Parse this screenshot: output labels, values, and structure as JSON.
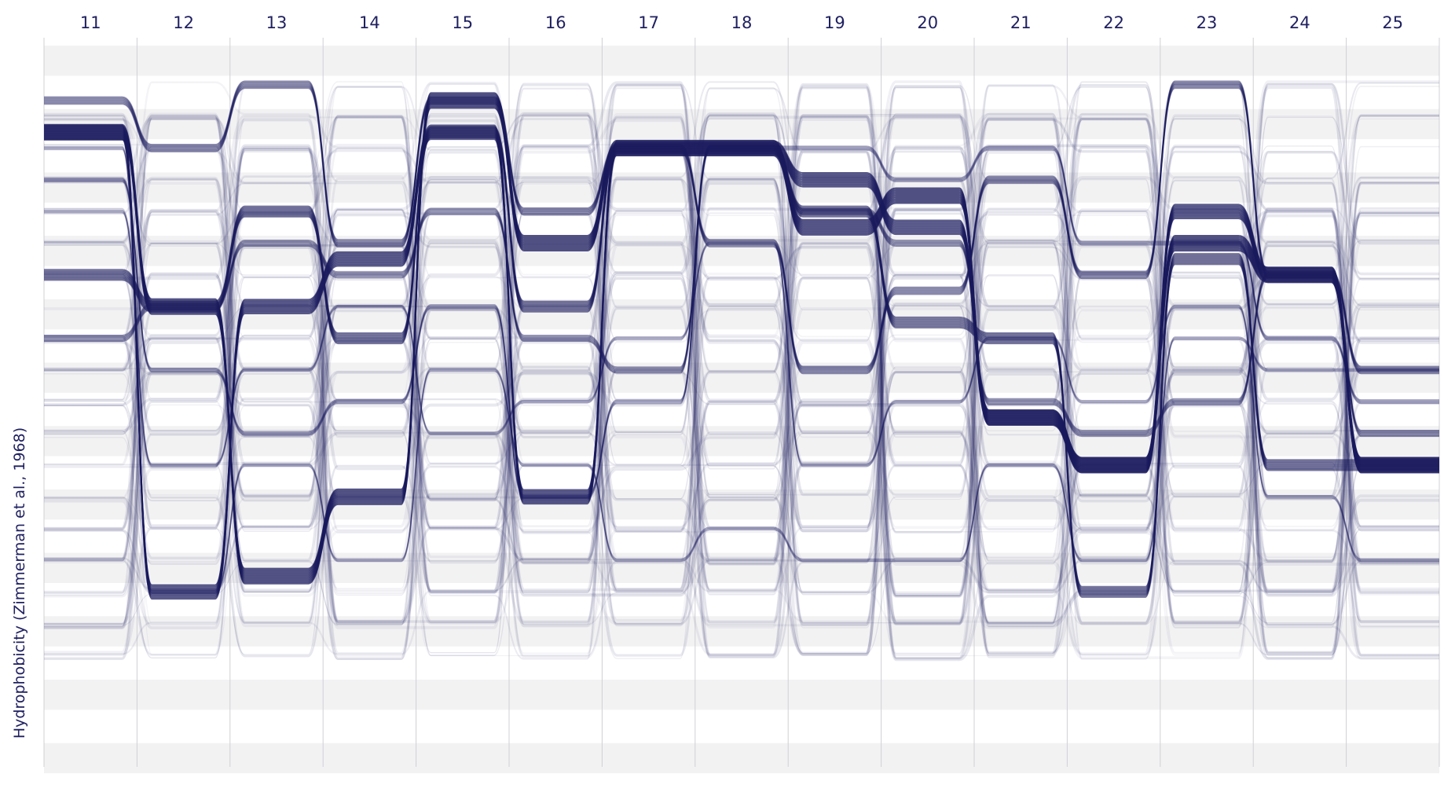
{
  "chart_data": {
    "type": "parallel-coordinates",
    "xlabel": "",
    "ylabel": "Hydrophobicity (Zimmerman et al., 1968)",
    "positions": [
      "11",
      "12",
      "13",
      "14",
      "15",
      "16",
      "17",
      "18",
      "19",
      "20",
      "21",
      "22",
      "23",
      "24",
      "25"
    ],
    "y_levels": 22,
    "grid": true,
    "bands": true,
    "line_color": "#1a1a5e",
    "major_paths": [
      {
        "values": [
          19.5,
          14,
          5.5,
          8,
          20.5,
          16,
          19,
          19,
          16.5,
          17.5,
          10.5,
          9,
          16,
          15,
          9
        ],
        "weight": 1.0
      },
      {
        "values": [
          19.5,
          5,
          14,
          15.5,
          19.5,
          8,
          19,
          19,
          18,
          16.5,
          10.5,
          9,
          17,
          15,
          9
        ],
        "weight": 0.9
      },
      {
        "values": [
          15,
          14,
          17,
          13,
          19.5,
          14,
          19,
          19,
          17,
          13.5,
          13,
          5,
          15.5,
          9,
          9
        ],
        "weight": 0.7
      },
      {
        "values": [
          20.5,
          19,
          21,
          16,
          20.5,
          17,
          19,
          16,
          12,
          14.5,
          18,
          15,
          21,
          15,
          12
        ],
        "weight": 0.5
      },
      {
        "values": [
          13,
          14,
          16,
          15,
          17,
          13,
          12,
          19,
          17,
          16,
          11,
          10,
          11,
          15,
          10
        ],
        "weight": 0.4
      },
      {
        "values": [
          18,
          12,
          10,
          11,
          14,
          8,
          11,
          19,
          19,
          18,
          19,
          16,
          16,
          13,
          11
        ],
        "weight": 0.3
      },
      {
        "values": [
          19,
          5,
          9,
          6,
          12,
          9,
          6,
          7,
          6,
          6,
          9,
          6,
          13,
          12,
          12
        ],
        "weight": 0.22
      },
      {
        "values": [
          17,
          9,
          12,
          14,
          10,
          11,
          13,
          16,
          9,
          11,
          13,
          11,
          14,
          8,
          6
        ],
        "weight": 0.22
      }
    ]
  }
}
